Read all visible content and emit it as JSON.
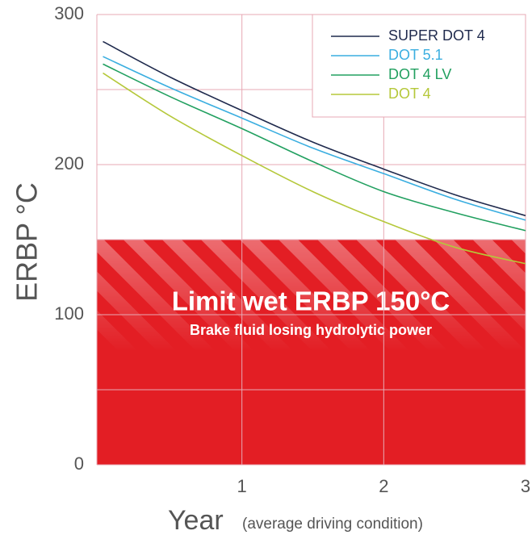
{
  "chart_data": {
    "type": "line",
    "xlabel": "Year",
    "xlabel_note": "(average driving condition)",
    "ylabel": "ERBP °C",
    "x": [
      0.02,
      0.5,
      1,
      1.5,
      2,
      2.5,
      3
    ],
    "series": [
      {
        "name": "SUPER DOT 4",
        "color": "#1f2a4d",
        "values": [
          282,
          258,
          236,
          215,
          197,
          180,
          166
        ]
      },
      {
        "name": "DOT 5.1",
        "color": "#3aaee0",
        "values": [
          272,
          251,
          231,
          211,
          194,
          177,
          163
        ]
      },
      {
        "name": "DOT 4 LV",
        "color": "#22a060",
        "values": [
          267,
          245,
          224,
          202,
          182,
          168,
          156
        ]
      },
      {
        "name": "DOT 4",
        "color": "#b5c83a",
        "values": [
          261,
          232,
          206,
          182,
          162,
          145,
          134
        ]
      }
    ],
    "xlim": [
      0,
      3
    ],
    "xticks": [
      1,
      2,
      3
    ],
    "ylim": [
      0,
      300
    ],
    "yticks": [
      0,
      100,
      200,
      300
    ],
    "ygrid_minor": [
      50,
      150,
      250
    ],
    "grid": true,
    "legend": "upper right",
    "limit": {
      "value": 150,
      "color": "#e31e24",
      "title": "Limit wet ERBP 150°C",
      "text": "Brake fluid losing hydrolytic power"
    }
  }
}
